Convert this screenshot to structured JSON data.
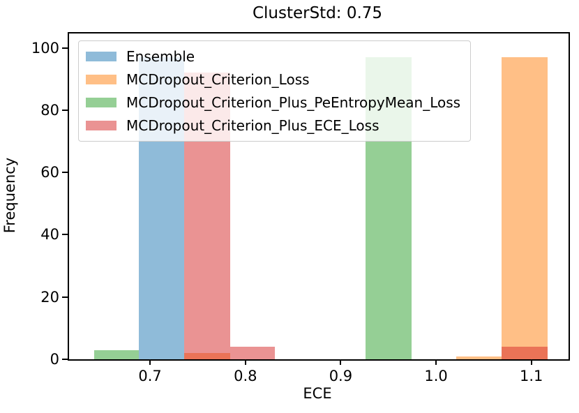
{
  "chart_data": {
    "type": "histogram",
    "title": "ClusterStd: 0.75",
    "xlabel": "ECE",
    "ylabel": "Frequency",
    "xlim": [
      0.615,
      1.139
    ],
    "ylim": [
      0,
      104.6
    ],
    "xticks": [
      0.7,
      0.8,
      0.9,
      1.0,
      1.1
    ],
    "yticks": [
      0,
      20,
      40,
      60,
      80,
      100
    ],
    "bin_width": 0.048,
    "grid": false,
    "legend_position": "upper left",
    "bar_alpha": 0.5,
    "series": [
      {
        "name": "Ensemble",
        "color": "#1f77b4",
        "bars": [
          {
            "x0": 0.688,
            "x1": 0.736,
            "value": 97
          }
        ]
      },
      {
        "name": "MCDropout_Criterion_Loss",
        "color": "#ff7f0e",
        "bars": [
          {
            "x0": 0.736,
            "x1": 0.784,
            "value": 2
          },
          {
            "x0": 1.021,
            "x1": 1.069,
            "value": 1
          },
          {
            "x0": 1.069,
            "x1": 1.117,
            "value": 97
          }
        ]
      },
      {
        "name": "MCDropout_Criterion_Plus_PeEntropyMean_Loss",
        "color": "#2ca02c",
        "bars": [
          {
            "x0": 0.641,
            "x1": 0.688,
            "value": 3
          },
          {
            "x0": 0.926,
            "x1": 0.974,
            "value": 97
          }
        ]
      },
      {
        "name": "MCDropout_Criterion_Plus_ECE_Loss",
        "color": "#d62728",
        "bars": [
          {
            "x0": 0.736,
            "x1": 0.784,
            "value": 92
          },
          {
            "x0": 0.784,
            "x1": 0.831,
            "value": 4
          },
          {
            "x0": 1.069,
            "x1": 1.117,
            "value": 4
          }
        ]
      }
    ]
  }
}
